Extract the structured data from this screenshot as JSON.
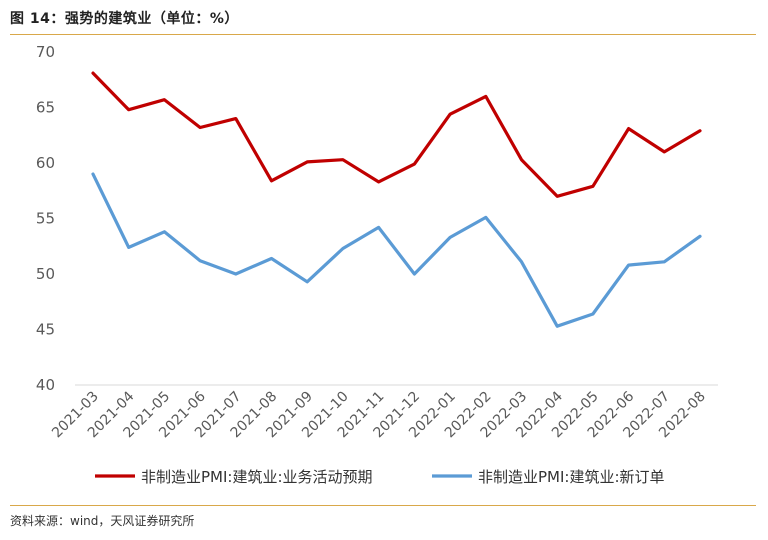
{
  "figure_title": "图 14：强势的建筑业（单位：%）",
  "source": "资料来源：wind，天风证券研究所",
  "colors": {
    "series1": "#c00000",
    "series2": "#5b9bd5",
    "accent": "#d9a84a"
  },
  "chart_data": {
    "type": "line",
    "title": "",
    "xlabel": "",
    "ylabel": "",
    "ylim": [
      40,
      70
    ],
    "yticks": [
      40,
      45,
      50,
      55,
      60,
      65,
      70
    ],
    "grid": false,
    "legend_position": "bottom",
    "categories": [
      "2021-03",
      "2021-04",
      "2021-05",
      "2021-06",
      "2021-07",
      "2021-08",
      "2021-09",
      "2021-10",
      "2021-11",
      "2021-12",
      "2022-01",
      "2022-02",
      "2022-03",
      "2022-04",
      "2022-05",
      "2022-06",
      "2022-07",
      "2022-08"
    ],
    "series": [
      {
        "name": "非制造业PMI:建筑业:业务活动预期",
        "values": [
          68.1,
          64.8,
          65.7,
          63.2,
          64.0,
          58.4,
          60.1,
          60.3,
          58.3,
          59.9,
          64.4,
          66.0,
          60.3,
          57.0,
          57.9,
          63.1,
          61.0,
          62.9
        ]
      },
      {
        "name": "非制造业PMI:建筑业:新订单",
        "values": [
          59.0,
          52.4,
          53.8,
          51.2,
          50.0,
          51.4,
          49.3,
          52.3,
          54.2,
          50.0,
          53.3,
          55.1,
          51.1,
          45.3,
          46.4,
          50.8,
          51.1,
          53.4
        ]
      }
    ]
  }
}
